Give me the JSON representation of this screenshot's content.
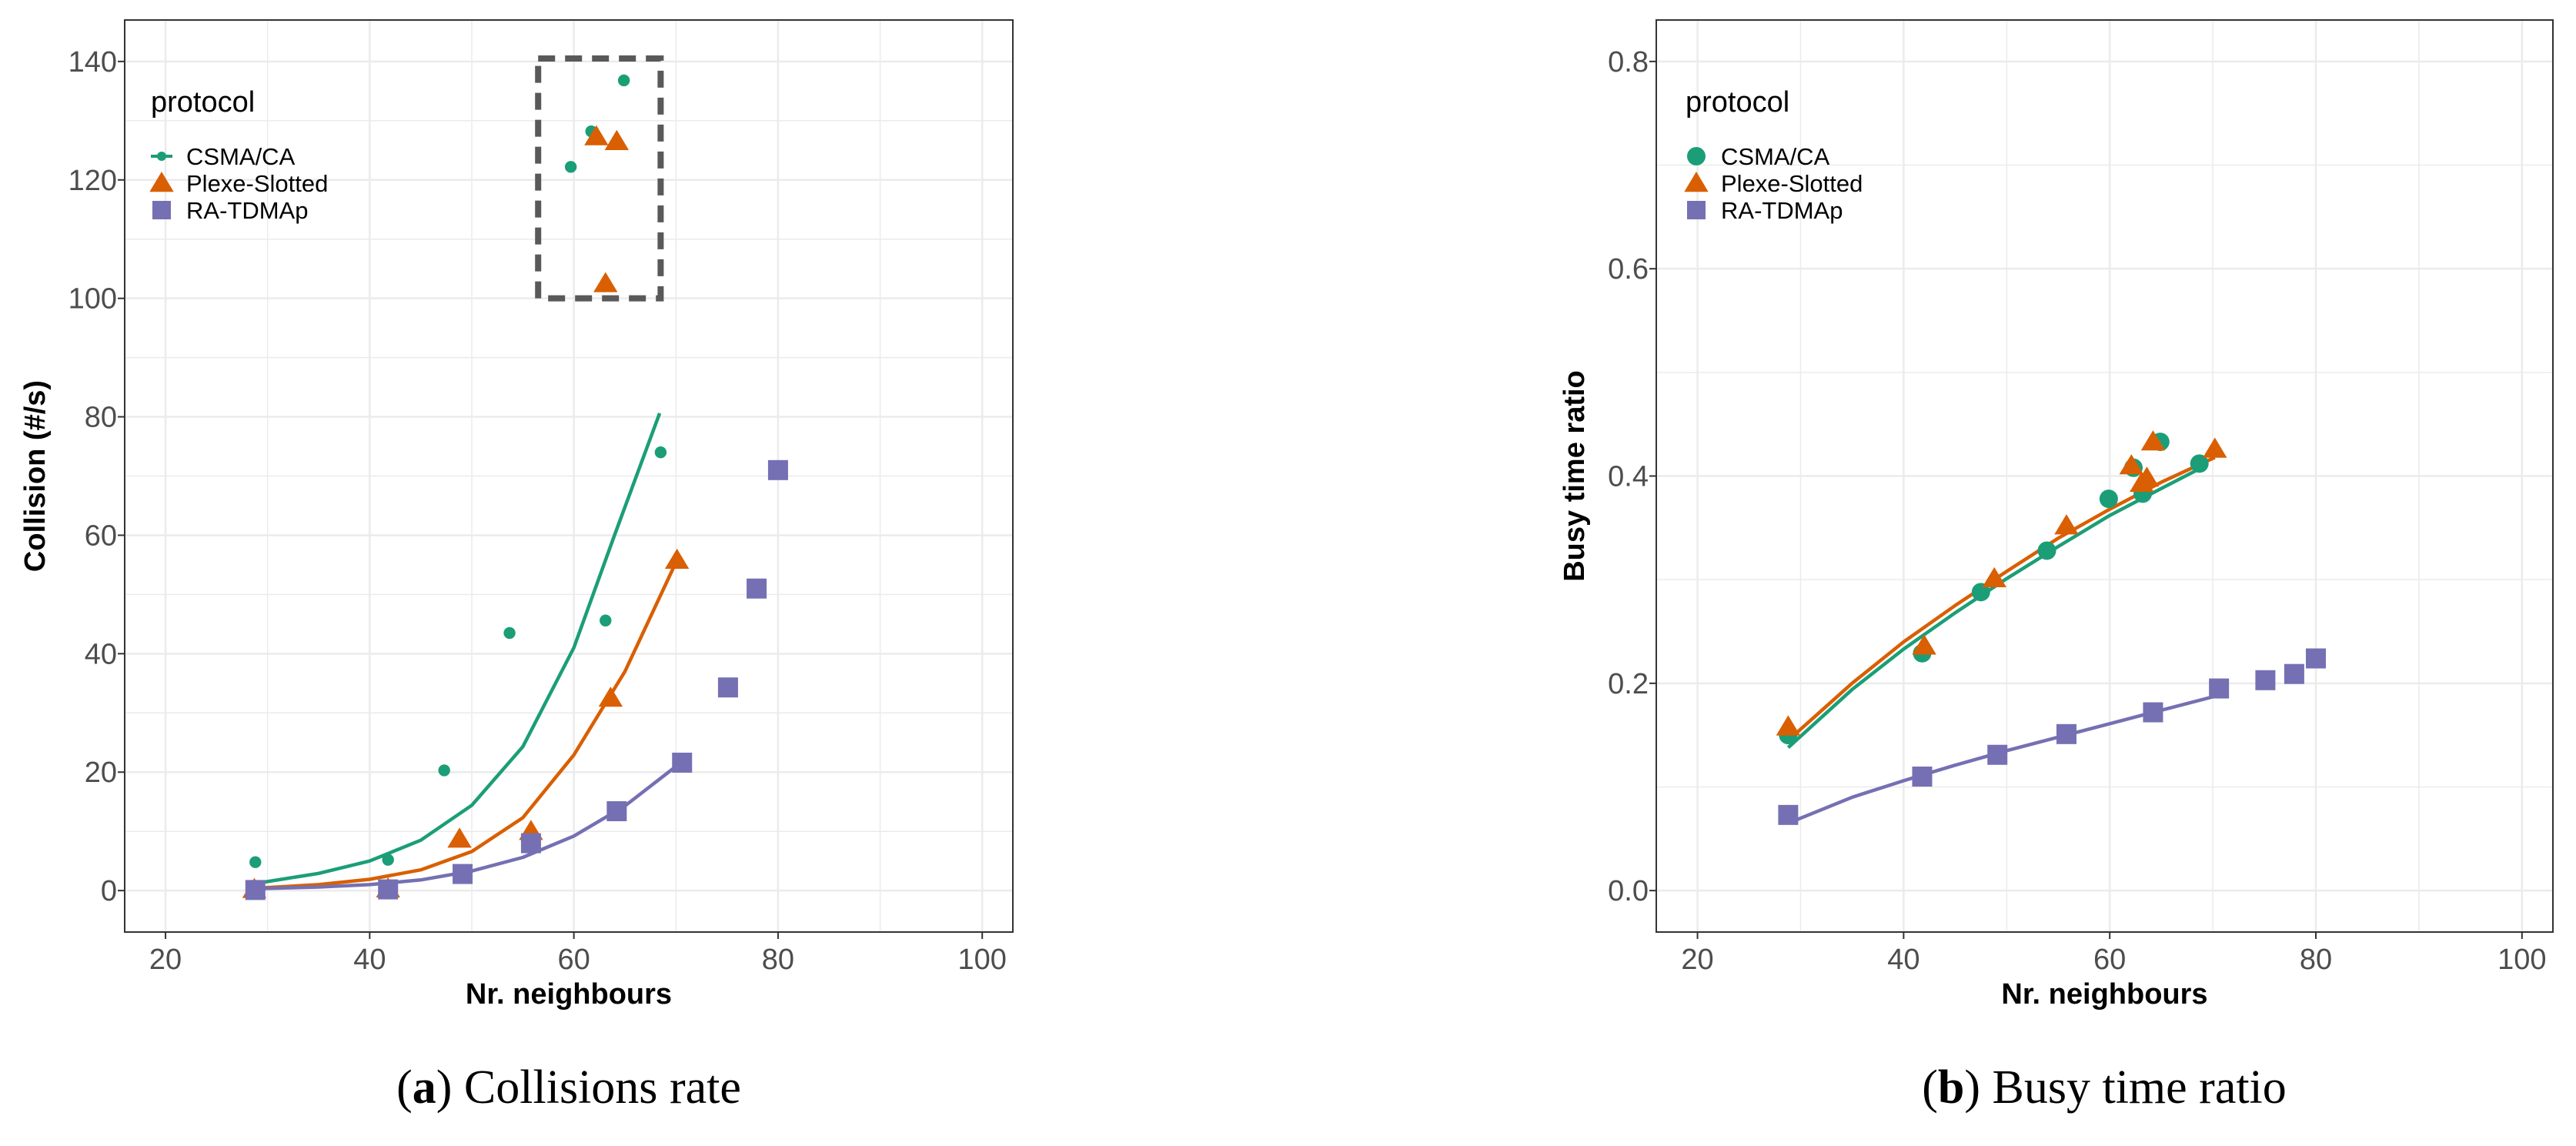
{
  "colors": {
    "csma": "#1b9e77",
    "plexe": "#d95f02",
    "ratdma": "#7570b3",
    "grid": "#ebebeb",
    "axis_text": "#4d4d4d",
    "highlight_box": "#595959"
  },
  "chart_data": [
    {
      "type": "scatter",
      "panel_letter": "a",
      "caption": "Collisions rate",
      "xlabel": "Nr. neighbours",
      "ylabel": "Collision (#/s)",
      "xlim": [
        16,
        103
      ],
      "ylim": [
        -7,
        147
      ],
      "x_ticks": [
        20,
        40,
        60,
        80,
        100
      ],
      "y_ticks": [
        0,
        20,
        40,
        60,
        80,
        100,
        120,
        140
      ],
      "grid": true,
      "legend": {
        "title": "protocol",
        "position": "top-left",
        "entries": [
          "CSMA/CA",
          "Plexe-Slotted",
          "RA-TDMAp"
        ],
        "markers": [
          "line-point",
          "triangle",
          "square"
        ]
      },
      "annotations": [
        {
          "type": "dashed-rectangle",
          "x": [
            56.5,
            68.5
          ],
          "y": [
            100,
            140.5
          ]
        }
      ],
      "series": [
        {
          "name": "CSMA/CA",
          "marker": "small-circle",
          "points": [
            [
              28.8,
              4.8
            ],
            [
              41.8,
              5.2
            ],
            [
              47.3,
              20.3
            ],
            [
              53.7,
              43.5
            ],
            [
              63.1,
              45.6
            ],
            [
              68.5,
              74
            ],
            [
              59.7,
              122.2
            ],
            [
              61.7,
              128.2
            ],
            [
              64.9,
              136.8
            ]
          ],
          "fit": [
            [
              28.8,
              1.2
            ],
            [
              35,
              2.9
            ],
            [
              40,
              5.0
            ],
            [
              45,
              8.5
            ],
            [
              50,
              14.4
            ],
            [
              55,
              24.3
            ],
            [
              60,
              41.0
            ],
            [
              64,
              60.1
            ],
            [
              68.4,
              80.6
            ]
          ]
        },
        {
          "name": "Plexe-Slotted",
          "marker": "triangle",
          "points": [
            [
              28.7,
              0.2
            ],
            [
              41.8,
              0.3
            ],
            [
              48.8,
              8.7
            ],
            [
              55.8,
              10.0
            ],
            [
              63.6,
              32.5
            ],
            [
              70.1,
              55.8
            ],
            [
              62.2,
              127.3
            ],
            [
              64.2,
              126.5
            ],
            [
              63.1,
              102.5
            ]
          ],
          "fit": [
            [
              28.8,
              0.4
            ],
            [
              35,
              1.0
            ],
            [
              40,
              1.9
            ],
            [
              45,
              3.5
            ],
            [
              50,
              6.6
            ],
            [
              55,
              12.3
            ],
            [
              60,
              22.9
            ],
            [
              65,
              37.0
            ],
            [
              70.1,
              55.8
            ]
          ]
        },
        {
          "name": "RA-TDMAp",
          "marker": "square",
          "points": [
            [
              28.8,
              0.1
            ],
            [
              41.8,
              0.2
            ],
            [
              49.1,
              2.8
            ],
            [
              55.8,
              8.0
            ],
            [
              64.2,
              13.4
            ],
            [
              70.6,
              21.6
            ],
            [
              75.1,
              34.3
            ],
            [
              77.9,
              51.0
            ],
            [
              80.0,
              71.0
            ]
          ],
          "fit": [
            [
              28.8,
              0.3
            ],
            [
              35,
              0.6
            ],
            [
              40,
              1.0
            ],
            [
              45,
              1.8
            ],
            [
              50,
              3.3
            ],
            [
              55,
              5.6
            ],
            [
              60,
              9.2
            ],
            [
              65,
              14.3
            ],
            [
              70.4,
              21.5
            ]
          ]
        }
      ]
    },
    {
      "type": "scatter",
      "panel_letter": "b",
      "caption": "Busy time ratio",
      "xlabel": "Nr. neighbours",
      "ylabel": "Busy time ratio",
      "xlim": [
        16,
        103
      ],
      "ylim": [
        -0.04,
        0.84
      ],
      "x_ticks": [
        20,
        40,
        60,
        80,
        100
      ],
      "y_ticks": [
        0.0,
        0.2,
        0.4,
        0.6,
        0.8
      ],
      "y_tick_labels": [
        "0.0",
        "0.2",
        "0.4",
        "0.6",
        "0.8"
      ],
      "grid": true,
      "legend": {
        "title": "protocol",
        "position": "top-left",
        "entries": [
          "CSMA/CA",
          "Plexe-Slotted",
          "RA-TDMAp"
        ],
        "markers": [
          "circle",
          "triangle",
          "square"
        ]
      },
      "series": [
        {
          "name": "CSMA/CA",
          "marker": "circle",
          "points": [
            [
              28.8,
              0.15
            ],
            [
              41.8,
              0.229
            ],
            [
              47.5,
              0.288
            ],
            [
              53.9,
              0.328
            ],
            [
              59.9,
              0.378
            ],
            [
              62.3,
              0.408
            ],
            [
              63.2,
              0.383
            ],
            [
              64.9,
              0.433
            ],
            [
              68.7,
              0.412
            ]
          ],
          "fit": [
            [
              28.8,
              0.138
            ],
            [
              35,
              0.194
            ],
            [
              40,
              0.233
            ],
            [
              45,
              0.268
            ],
            [
              50,
              0.301
            ],
            [
              55,
              0.332
            ],
            [
              60,
              0.362
            ],
            [
              65,
              0.388
            ],
            [
              69.3,
              0.41
            ]
          ]
        },
        {
          "name": "Plexe-Slotted",
          "marker": "triangle",
          "points": [
            [
              28.8,
              0.158
            ],
            [
              42.0,
              0.236
            ],
            [
              48.8,
              0.301
            ],
            [
              55.8,
              0.352
            ],
            [
              62.1,
              0.41
            ],
            [
              63.1,
              0.393
            ],
            [
              63.6,
              0.398
            ],
            [
              64.2,
              0.433
            ],
            [
              70.2,
              0.426
            ]
          ],
          "fit": [
            [
              28.8,
              0.145
            ],
            [
              35,
              0.2
            ],
            [
              40,
              0.24
            ],
            [
              45,
              0.275
            ],
            [
              50,
              0.308
            ],
            [
              55,
              0.34
            ],
            [
              60,
              0.368
            ],
            [
              65,
              0.394
            ],
            [
              70.2,
              0.418
            ]
          ]
        },
        {
          "name": "RA-TDMAp",
          "marker": "square",
          "points": [
            [
              28.8,
              0.073
            ],
            [
              41.8,
              0.11
            ],
            [
              49.1,
              0.131
            ],
            [
              55.8,
              0.151
            ],
            [
              64.2,
              0.172
            ],
            [
              70.6,
              0.195
            ],
            [
              75.1,
              0.203
            ],
            [
              77.9,
              0.209
            ],
            [
              80.0,
              0.224
            ]
          ],
          "fit": [
            [
              28.8,
              0.065
            ],
            [
              35,
              0.09
            ],
            [
              40,
              0.106
            ],
            [
              45,
              0.121
            ],
            [
              50,
              0.135
            ],
            [
              55,
              0.148
            ],
            [
              60,
              0.161
            ],
            [
              65,
              0.174
            ],
            [
              70.4,
              0.188
            ]
          ]
        }
      ]
    }
  ]
}
